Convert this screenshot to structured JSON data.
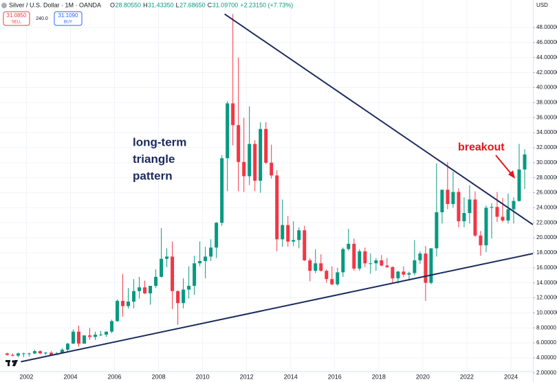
{
  "header": {
    "symbol": "Silver / U.S. Dollar · 1M · OANDA",
    "ohlc": [
      {
        "label": "O",
        "value": "28.80550"
      },
      {
        "label": "H",
        "value": "31.43350"
      },
      {
        "label": "L",
        "value": "27.68650"
      },
      {
        "label": "C",
        "value": "31.09700"
      },
      {
        "label": "",
        "value": "+2.23150 (+7.73%)"
      }
    ],
    "sell_price": "31.0850",
    "sell_label": "SELL",
    "spread": "240.0",
    "buy_price": "31.1090",
    "buy_label": "BUY",
    "currency": "USD"
  },
  "chart_data": {
    "type": "candlestick",
    "up_color": "#089981",
    "down_color": "#f23645",
    "grid": true,
    "xlim": [
      2000.8,
      2025.0
    ],
    "ylim": [
      1.8,
      51.67
    ],
    "xticks": [
      2002,
      2004,
      2006,
      2008,
      2010,
      2012,
      2014,
      2016,
      2018,
      2020,
      2022,
      2024
    ],
    "yticks": [
      {
        "value": 2,
        "label": "2.00000"
      },
      {
        "value": 4,
        "label": "4.00000"
      },
      {
        "value": 6,
        "label": "6.00000"
      },
      {
        "value": 8,
        "label": "8.00000"
      },
      {
        "value": 10,
        "label": "10.00000"
      },
      {
        "value": 12,
        "label": "12.00000"
      },
      {
        "value": 14,
        "label": "14.00000"
      },
      {
        "value": 16,
        "label": "16.00000"
      },
      {
        "value": 18,
        "label": "18.00000"
      },
      {
        "value": 20,
        "label": "20.00000"
      },
      {
        "value": 22,
        "label": "22.00000"
      },
      {
        "value": 24,
        "label": "24.00000"
      },
      {
        "value": 26,
        "label": "26.00000"
      },
      {
        "value": 28,
        "label": "28.00000"
      },
      {
        "value": 30,
        "label": "30.00000"
      },
      {
        "value": 32,
        "label": "32.00000"
      },
      {
        "value": 34,
        "label": "34.00000"
      },
      {
        "value": 36,
        "label": "36.00000"
      },
      {
        "value": 38,
        "label": "38.00000"
      },
      {
        "value": 40,
        "label": "40.00000"
      },
      {
        "value": 42,
        "label": "42.00000"
      },
      {
        "value": 44,
        "label": "44.00000"
      },
      {
        "value": 46,
        "label": "46.00000"
      },
      {
        "value": 48,
        "label": "48.00000"
      }
    ],
    "x": [
      2001.125,
      2001.375,
      2001.625,
      2001.875,
      2002.125,
      2002.375,
      2002.625,
      2002.875,
      2003.125,
      2003.375,
      2003.625,
      2003.875,
      2004.125,
      2004.375,
      2004.625,
      2004.875,
      2005.125,
      2005.375,
      2005.625,
      2005.875,
      2006.125,
      2006.375,
      2006.625,
      2006.875,
      2007.125,
      2007.375,
      2007.625,
      2007.875,
      2008.125,
      2008.375,
      2008.625,
      2008.875,
      2009.125,
      2009.375,
      2009.625,
      2009.875,
      2010.125,
      2010.375,
      2010.625,
      2010.875,
      2011.125,
      2011.375,
      2011.625,
      2011.875,
      2012.125,
      2012.375,
      2012.625,
      2012.875,
      2013.125,
      2013.375,
      2013.625,
      2013.875,
      2014.125,
      2014.375,
      2014.625,
      2014.875,
      2015.125,
      2015.375,
      2015.625,
      2015.875,
      2016.125,
      2016.375,
      2016.625,
      2016.875,
      2017.125,
      2017.375,
      2017.625,
      2017.875,
      2018.125,
      2018.375,
      2018.625,
      2018.875,
      2019.125,
      2019.375,
      2019.625,
      2019.875,
      2020.125,
      2020.375,
      2020.625,
      2020.875,
      2021.125,
      2021.375,
      2021.625,
      2021.875,
      2022.125,
      2022.375,
      2022.625,
      2022.875,
      2023.125,
      2023.375,
      2023.625,
      2023.875,
      2024.125,
      2024.375,
      2024.625
    ],
    "open": [
      4.6,
      4.4,
      4.3,
      4.6,
      4.6,
      4.6,
      4.9,
      4.6,
      4.7,
      4.4,
      4.6,
      5.1,
      5.9,
      7.5,
      5.9,
      7.0,
      6.8,
      7.1,
      7.1,
      7.5,
      8.9,
      11.6,
      10.9,
      11.5,
      12.9,
      13.4,
      12.6,
      13.6,
      14.8,
      17.2,
      17.5,
      12.9,
      11.3,
      13.1,
      13.6,
      16.6,
      16.9,
      17.5,
      18.7,
      22.0,
      30.6,
      37.9,
      35.0,
      30.1,
      28.2,
      32.5,
      27.6,
      34.5,
      30.0,
      28.3,
      19.8,
      21.7,
      19.5,
      19.7,
      21.0,
      17.0,
      15.6,
      16.6,
      15.6,
      14.5,
      13.8,
      15.4,
      18.5,
      19.2,
      15.9,
      18.2,
      16.6,
      16.6,
      17.0,
      16.3,
      16.1,
      14.6,
      15.5,
      15.1,
      15.3,
      17.0,
      17.9,
      14.0,
      18.6,
      23.4,
      26.4,
      24.5,
      26.1,
      22.2,
      23.3,
      25.1,
      20.3,
      19.0,
      24.0,
      24.1,
      22.8,
      22.3,
      23.8,
      24.9,
      29.1
    ],
    "high": [
      4.7,
      4.6,
      4.7,
      4.7,
      4.7,
      5.1,
      5.0,
      4.8,
      4.9,
      4.8,
      5.3,
      6.0,
      7.8,
      8.3,
      7.0,
      8.0,
      7.5,
      7.6,
      7.5,
      9.1,
      11.8,
      15.2,
      13.3,
      14.5,
      14.8,
      14.3,
      13.5,
      15.8,
      21.3,
      18.6,
      19.5,
      13.0,
      14.6,
      16.2,
      17.6,
      19.5,
      18.8,
      19.8,
      22.1,
      31.0,
      38.2,
      49.8,
      44.0,
      36.0,
      37.5,
      33.0,
      35.4,
      35.4,
      32.4,
      29.0,
      25.1,
      22.9,
      22.2,
      21.4,
      21.6,
      17.3,
      18.5,
      17.8,
      15.8,
      16.2,
      16.0,
      18.7,
      21.2,
      19.9,
      18.5,
      18.7,
      17.9,
      17.3,
      17.7,
      17.3,
      16.2,
      15.6,
      16.2,
      15.5,
      19.7,
      18.2,
      18.9,
      18.6,
      29.9,
      26.0,
      30.1,
      28.8,
      26.6,
      25.4,
      27.0,
      26.2,
      20.9,
      24.3,
      24.6,
      26.1,
      25.3,
      25.9,
      25.4,
      32.5,
      31.8
    ],
    "low": [
      4.3,
      4.2,
      4.1,
      4.1,
      4.2,
      4.5,
      4.5,
      4.4,
      4.3,
      4.4,
      4.6,
      4.8,
      5.9,
      5.5,
      5.9,
      6.4,
      6.4,
      6.9,
      6.8,
      7.3,
      8.8,
      9.5,
      10.6,
      10.6,
      11.9,
      12.5,
      11.1,
      13.3,
      14.7,
      16.1,
      10.5,
      8.4,
      10.6,
      11.9,
      12.4,
      16.2,
      14.6,
      16.9,
      17.3,
      21.6,
      26.2,
      32.3,
      26.2,
      26.1,
      27.0,
      26.2,
      26.0,
      29.8,
      27.9,
      18.2,
      18.8,
      18.8,
      18.9,
      18.6,
      16.9,
      14.2,
      15.3,
      15.5,
      14.0,
      13.7,
      13.6,
      14.8,
      18.3,
      15.6,
      15.6,
      16.1,
      15.2,
      15.6,
      16.2,
      16.0,
      13.9,
      13.9,
      14.8,
      14.3,
      15.0,
      16.5,
      11.6,
      13.8,
      17.5,
      21.9,
      23.8,
      24.0,
      21.4,
      21.4,
      21.9,
      20.1,
      17.6,
      18.1,
      19.9,
      22.1,
      22.1,
      21.9,
      21.9,
      24.8,
      26.5
    ],
    "close": [
      4.4,
      4.3,
      4.6,
      4.6,
      4.6,
      4.9,
      4.6,
      4.7,
      4.4,
      4.6,
      5.1,
      5.9,
      7.5,
      5.9,
      7.0,
      6.8,
      7.1,
      7.1,
      7.5,
      8.9,
      11.6,
      10.9,
      11.5,
      12.9,
      13.4,
      12.6,
      13.6,
      14.8,
      17.2,
      17.5,
      12.9,
      11.3,
      13.1,
      13.6,
      16.6,
      16.9,
      17.5,
      18.7,
      22.0,
      30.6,
      37.9,
      35.0,
      30.1,
      28.2,
      32.5,
      27.6,
      34.5,
      30.0,
      28.3,
      19.8,
      21.7,
      19.5,
      19.7,
      21.0,
      17.0,
      15.6,
      16.6,
      15.6,
      14.5,
      13.8,
      15.4,
      18.5,
      19.2,
      15.9,
      18.2,
      16.6,
      16.6,
      17.0,
      16.3,
      16.1,
      14.6,
      15.5,
      15.1,
      15.3,
      17.0,
      17.9,
      14.0,
      18.6,
      23.4,
      26.4,
      24.5,
      26.1,
      22.2,
      23.3,
      25.1,
      20.3,
      19.0,
      24.0,
      24.1,
      22.8,
      22.3,
      23.8,
      24.9,
      29.1,
      31.1
    ],
    "trendlines": [
      {
        "color": "#1b2a5e",
        "x": [
          2001.75,
          2025.0
        ],
        "y": [
          3.49,
          17.9
        ]
      },
      {
        "color": "#1b2a5e",
        "x": [
          2011.0,
          2025.0
        ],
        "y": [
          49.8,
          21.75
        ]
      }
    ],
    "annotations": [
      {
        "lines": [
          "long-term",
          "triangle",
          "pattern"
        ],
        "color": "#1b2a5e"
      },
      {
        "lines": [
          "breakout"
        ],
        "color": "#e8141b"
      }
    ]
  }
}
